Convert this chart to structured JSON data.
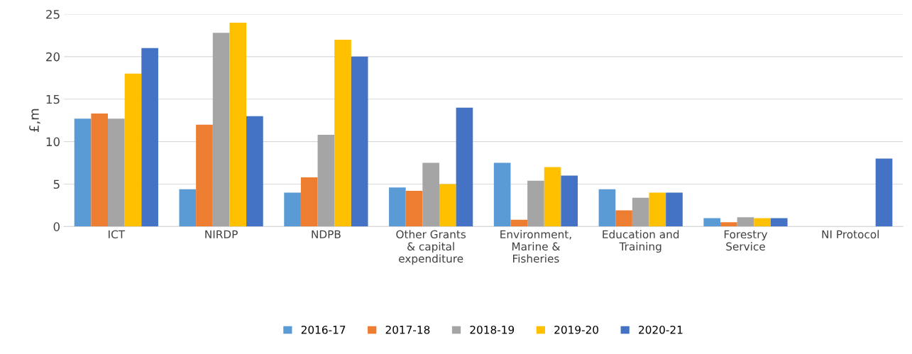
{
  "chart_data": {
    "type": "bar",
    "ylabel": "£,m",
    "categories": [
      "ICT",
      "NIRDP",
      "NDPB",
      "Other Grants\n& capital\nexpenditure",
      "Environment,\nMarine &\nFisheries",
      "Education and\nTraining",
      "Forestry\nService",
      "NI Protocol"
    ],
    "series": [
      {
        "name": "2016-17",
        "color": "#5b9bd5",
        "values": [
          12.7,
          4.4,
          4.0,
          4.6,
          7.5,
          4.4,
          1.0,
          0
        ]
      },
      {
        "name": "2017-18",
        "color": "#ed7d31",
        "values": [
          13.3,
          12.0,
          5.8,
          4.2,
          0.8,
          1.9,
          0.5,
          0
        ]
      },
      {
        "name": "2018-19",
        "color": "#a5a5a5",
        "values": [
          12.7,
          22.8,
          10.8,
          7.5,
          5.4,
          3.4,
          1.1,
          0
        ]
      },
      {
        "name": "2019-20",
        "color": "#ffc000",
        "values": [
          18.0,
          24.0,
          22.0,
          5.0,
          7.0,
          4.0,
          1.0,
          0
        ]
      },
      {
        "name": "2020-21",
        "color": "#4472c4",
        "values": [
          21.0,
          13.0,
          20.0,
          14.0,
          6.0,
          4.0,
          1.0,
          8.0
        ]
      }
    ],
    "ylim": [
      0,
      25
    ],
    "yticks": [
      0,
      5,
      10,
      15,
      20,
      25
    ],
    "grid": "y",
    "legend": "bottom"
  }
}
